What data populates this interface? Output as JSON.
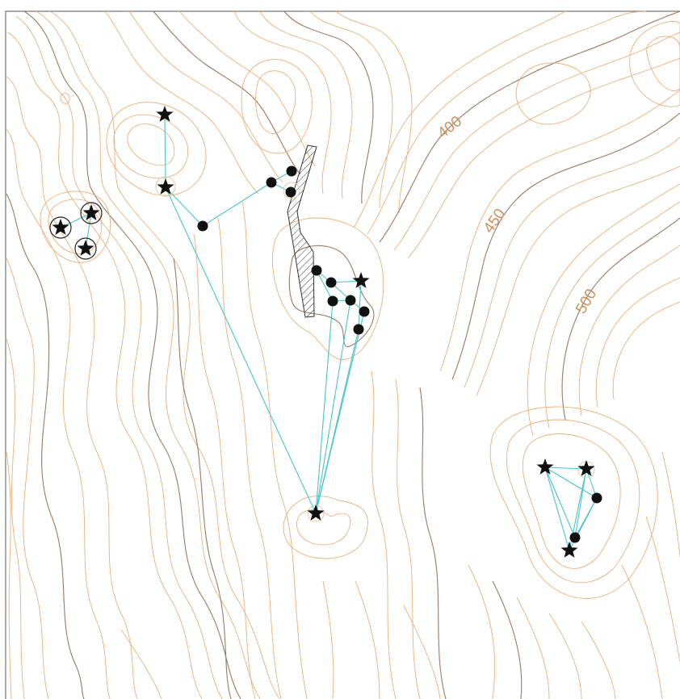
{
  "map": {
    "contour_labels": [
      "400",
      "450",
      "500"
    ],
    "colors": {
      "minor_contour": "#e8b07c",
      "major_contour": "#9a7a66",
      "link_line": "#49c3cc",
      "marker": "#111111",
      "frame": "#777777"
    },
    "symbols": [
      "star-marker",
      "dot-marker",
      "circled-star-marker",
      "hatched-ridge"
    ]
  }
}
